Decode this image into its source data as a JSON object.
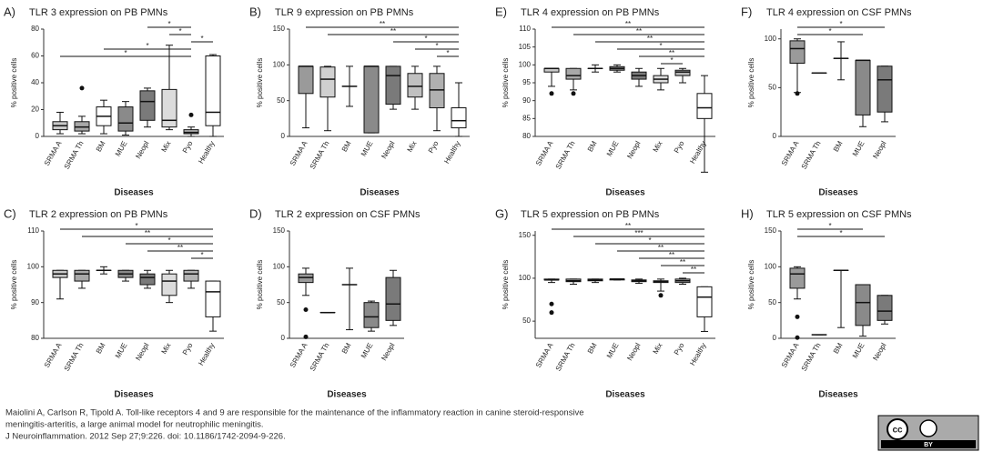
{
  "chart_data": [
    {
      "type": "box",
      "label": "A)",
      "title": "TLR 3 expression on PB PMNs",
      "ylabel": "% positive cells",
      "xlabel": "Diseases",
      "categories": [
        "SRMA A",
        "SRMA Th",
        "BM",
        "MUE",
        "Neopl",
        "Mix",
        "Pyo",
        "Healthy"
      ],
      "boxes": [
        [
          2,
          5,
          8,
          11,
          18
        ],
        [
          2,
          4,
          7,
          11,
          15
        ],
        [
          2,
          8,
          15,
          22,
          27
        ],
        [
          1,
          4,
          10,
          22,
          26
        ],
        [
          7,
          12,
          26,
          34,
          36
        ],
        [
          5,
          7,
          12,
          35,
          68
        ],
        [
          0,
          2,
          3,
          5,
          7
        ],
        [
          0,
          8,
          18,
          60,
          61
        ]
      ],
      "outliers": [
        [],
        [
          36
        ],
        [],
        [],
        [],
        [],
        [
          16
        ],
        []
      ],
      "colors": [
        "#c8c8c8",
        "#a8a8a8",
        "#ffffff",
        "#8a8a8a",
        "#7a7a7a",
        "#dcdcdc",
        "#b4b4b4",
        "#ffffff"
      ],
      "ylim": [
        0,
        80
      ],
      "yticks": [
        0,
        20,
        40,
        60,
        80
      ],
      "annotations": [
        {
          "text": "*",
          "from": "Neopl",
          "to": "Pyo"
        },
        {
          "text": "*",
          "from": "Mix",
          "to": "Pyo"
        },
        {
          "text": "*",
          "from": "Pyo",
          "to": "Healthy"
        },
        {
          "text": "*",
          "from": "BM",
          "to": "Pyo"
        },
        {
          "text": "*",
          "from": "SRMA A",
          "to": "Pyo"
        }
      ]
    },
    {
      "type": "box",
      "label": "B)",
      "title": "TLR 9 expression on PB PMNs",
      "ylabel": "% positive cells",
      "xlabel": "Diseases",
      "categories": [
        "SRMA A",
        "SRMA Th",
        "BM",
        "MUE",
        "Neopl",
        "Mix",
        "Pyo",
        "Healthy"
      ],
      "boxes": [
        [
          12,
          60,
          98,
          98,
          98
        ],
        [
          8,
          55,
          80,
          97,
          98
        ],
        [
          42,
          70,
          70,
          70,
          98
        ],
        [
          5,
          5,
          98,
          98,
          98
        ],
        [
          38,
          45,
          85,
          98,
          98
        ],
        [
          38,
          55,
          70,
          88,
          98
        ],
        [
          8,
          40,
          65,
          88,
          98
        ],
        [
          0,
          12,
          22,
          40,
          75
        ]
      ],
      "outliers": [
        [],
        [],
        [],
        [],
        [],
        [],
        [],
        []
      ],
      "colors": [
        "#9a9a9a",
        "#d0d0d0",
        "#ffffff",
        "#8a8a8a",
        "#7a7a7a",
        "#c0c0c0",
        "#b0b0b0",
        "#ffffff"
      ],
      "ylim": [
        0,
        150
      ],
      "yticks": [
        0,
        50,
        100,
        150
      ],
      "annotations": [
        {
          "text": "**",
          "from": "SRMA A",
          "to": "Healthy"
        },
        {
          "text": "**",
          "from": "SRMA Th",
          "to": "Healthy"
        },
        {
          "text": "*",
          "from": "Neopl",
          "to": "Healthy"
        },
        {
          "text": "*",
          "from": "Mix",
          "to": "Healthy"
        },
        {
          "text": "*",
          "from": "Pyo",
          "to": "Healthy"
        }
      ]
    },
    {
      "type": "box",
      "label": "E)",
      "title": "TLR 4 expression on PB PMNs",
      "ylabel": "% positive cells",
      "xlabel": "Diseases",
      "categories": [
        "SRMA A",
        "SRMA Th",
        "BM",
        "MUE",
        "Neopl",
        "Mix",
        "Pyo",
        "Healthy"
      ],
      "boxes": [
        [
          94,
          98,
          99,
          99,
          99
        ],
        [
          93,
          96,
          97,
          99,
          99
        ],
        [
          98,
          99,
          99,
          99,
          100
        ],
        [
          98,
          98.5,
          99,
          99.5,
          100
        ],
        [
          94,
          96,
          97,
          98,
          99
        ],
        [
          93,
          95,
          96,
          97,
          99
        ],
        [
          95,
          97,
          98,
          98.5,
          99
        ],
        [
          70,
          85,
          88,
          92,
          97
        ]
      ],
      "outliers": [
        [
          92
        ],
        [
          92
        ],
        [],
        [],
        [],
        [],
        [],
        []
      ],
      "colors": [
        "#c8c8c8",
        "#a8a8a8",
        "#ffffff",
        "#8a8a8a",
        "#7a7a7a",
        "#dcdcdc",
        "#b4b4b4",
        "#ffffff"
      ],
      "ylim": [
        80,
        110
      ],
      "yticks": [
        80,
        85,
        90,
        95,
        100,
        105,
        110
      ],
      "annotations": [
        {
          "text": "**",
          "from": "SRMA A",
          "to": "Healthy"
        },
        {
          "text": "**",
          "from": "SRMA Th",
          "to": "Healthy"
        },
        {
          "text": "**",
          "from": "BM",
          "to": "Healthy"
        },
        {
          "text": "*",
          "from": "MUE",
          "to": "Healthy"
        },
        {
          "text": "**",
          "from": "Neopl",
          "to": "Healthy"
        },
        {
          "text": "*",
          "from": "Mix",
          "to": "Pyo"
        }
      ]
    },
    {
      "type": "box",
      "label": "F)",
      "title": "TLR 4 expression on CSF PMNs",
      "ylabel": "% positive cells",
      "xlabel": "Diseases",
      "categories": [
        "SRMA A",
        "SRMA Th",
        "BM",
        "MUE",
        "Neopl"
      ],
      "boxes": [
        [
          45,
          75,
          90,
          98,
          100
        ],
        [
          65,
          65,
          65,
          65,
          65
        ],
        [
          58,
          80,
          80,
          80,
          97
        ],
        [
          10,
          22,
          78,
          78,
          78
        ],
        [
          15,
          25,
          58,
          72,
          72
        ]
      ],
      "outliers": [
        [
          44
        ],
        [],
        [],
        [],
        []
      ],
      "colors": [
        "#9a9a9a",
        "#ffffff",
        "#ffffff",
        "#8a8a8a",
        "#7a7a7a"
      ],
      "ylim": [
        0,
        110
      ],
      "yticks": [
        0,
        50,
        100
      ],
      "annotations": [
        {
          "text": "*",
          "from": "SRMA A",
          "to": "Neopl"
        },
        {
          "text": "*",
          "from": "SRMA A",
          "to": "MUE"
        }
      ]
    },
    {
      "type": "box",
      "label": "C)",
      "title": "TLR 2 expression  on PB PMNs",
      "ylabel": "% positive cells",
      "xlabel": "Diseases",
      "categories": [
        "SRMA A",
        "SRMA Th",
        "BM",
        "MUE",
        "Neopl",
        "Mix",
        "Pyo",
        "Healthy"
      ],
      "boxes": [
        [
          91,
          97,
          98,
          99,
          99
        ],
        [
          94,
          96,
          98,
          99,
          99
        ],
        [
          98,
          99,
          99,
          99,
          100
        ],
        [
          96,
          97,
          98,
          99,
          99
        ],
        [
          94,
          95,
          97,
          98,
          99
        ],
        [
          90,
          92,
          96,
          98,
          99
        ],
        [
          94,
          96,
          98,
          99,
          99
        ],
        [
          82,
          86,
          93,
          96,
          96
        ]
      ],
      "outliers": [
        [],
        [],
        [],
        [],
        [],
        [],
        [],
        []
      ],
      "colors": [
        "#c8c8c8",
        "#a8a8a8",
        "#ffffff",
        "#8a8a8a",
        "#7a7a7a",
        "#dcdcdc",
        "#b4b4b4",
        "#ffffff"
      ],
      "ylim": [
        80,
        110
      ],
      "yticks": [
        80,
        90,
        100,
        110
      ],
      "annotations": [
        {
          "text": "*",
          "from": "SRMA A",
          "to": "Healthy"
        },
        {
          "text": "**",
          "from": "SRMA Th",
          "to": "Healthy"
        },
        {
          "text": "*",
          "from": "MUE",
          "to": "Healthy"
        },
        {
          "text": "**",
          "from": "Neopl",
          "to": "Healthy"
        },
        {
          "text": "*",
          "from": "Pyo",
          "to": "Healthy"
        }
      ]
    },
    {
      "type": "box",
      "label": "D)",
      "title": "TLR 2 expression on CSF PMNs",
      "ylabel": "% positive cells",
      "xlabel": "Diseases",
      "categories": [
        "SRMA A",
        "SRMA Th",
        "BM",
        "MUE",
        "Neopl"
      ],
      "boxes": [
        [
          60,
          78,
          85,
          90,
          98
        ],
        [
          36,
          36,
          36,
          36,
          36
        ],
        [
          12,
          75,
          75,
          75,
          98
        ],
        [
          10,
          15,
          30,
          50,
          52
        ],
        [
          18,
          25,
          48,
          85,
          95
        ]
      ],
      "outliers": [
        [
          40,
          2
        ],
        [],
        [],
        [],
        []
      ],
      "colors": [
        "#9a9a9a",
        "#ffffff",
        "#ffffff",
        "#8a8a8a",
        "#7a7a7a"
      ],
      "ylim": [
        0,
        150
      ],
      "yticks": [
        0,
        50,
        100,
        150
      ],
      "annotations": []
    },
    {
      "type": "box",
      "label": "G)",
      "title": "TLR 5 expression on PB PMNs",
      "ylabel": "% positive cells",
      "xlabel": "Diseases",
      "categories": [
        "SRMA A",
        "SRMA Th",
        "BM",
        "MUE",
        "Neopl",
        "Mix",
        "Pyo",
        "Healthy"
      ],
      "boxes": [
        [
          95,
          98,
          98,
          99,
          99
        ],
        [
          93,
          96,
          97,
          99,
          99
        ],
        [
          95,
          97,
          98,
          99,
          99
        ],
        [
          98,
          98,
          99,
          99,
          99
        ],
        [
          94,
          96,
          97,
          98,
          99
        ],
        [
          85,
          95,
          96,
          97,
          99
        ],
        [
          93,
          95,
          97,
          99,
          100
        ],
        [
          38,
          55,
          78,
          90,
          90
        ]
      ],
      "outliers": [
        [
          70,
          60
        ],
        [],
        [],
        [],
        [],
        [
          80
        ],
        [],
        []
      ],
      "colors": [
        "#c8c8c8",
        "#a8a8a8",
        "#ffffff",
        "#8a8a8a",
        "#7a7a7a",
        "#dcdcdc",
        "#b4b4b4",
        "#ffffff"
      ],
      "ylim": [
        30,
        155
      ],
      "yticks": [
        50,
        100,
        150
      ],
      "annotations": [
        {
          "text": "**",
          "from": "SRMA A",
          "to": "Healthy"
        },
        {
          "text": "***",
          "from": "SRMA Th",
          "to": "Healthy"
        },
        {
          "text": "*",
          "from": "BM",
          "to": "Healthy"
        },
        {
          "text": "**",
          "from": "MUE",
          "to": "Healthy"
        },
        {
          "text": "**",
          "from": "Neopl",
          "to": "Healthy"
        },
        {
          "text": "**",
          "from": "Mix",
          "to": "Healthy"
        },
        {
          "text": "**",
          "from": "Pyo",
          "to": "Healthy"
        }
      ]
    },
    {
      "type": "box",
      "label": "H)",
      "title": "TLR 5 expression on CSF PMNs",
      "ylabel": "% positive cells",
      "xlabel": "Diseases",
      "categories": [
        "SRMA A",
        "SRMA Th",
        "BM",
        "MUE",
        "Neopl"
      ],
      "boxes": [
        [
          55,
          70,
          90,
          98,
          100
        ],
        [
          5,
          5,
          5,
          5,
          5
        ],
        [
          15,
          95,
          95,
          95,
          95
        ],
        [
          3,
          18,
          50,
          75,
          75
        ],
        [
          20,
          25,
          38,
          60,
          60
        ]
      ],
      "outliers": [
        [
          30,
          1
        ],
        [],
        [],
        [],
        []
      ],
      "colors": [
        "#9a9a9a",
        "#ffffff",
        "#ffffff",
        "#8a8a8a",
        "#7a7a7a"
      ],
      "ylim": [
        0,
        150
      ],
      "yticks": [
        0,
        50,
        100,
        150
      ],
      "annotations": [
        {
          "text": "*",
          "from": "SRMA A",
          "to": "MUE"
        },
        {
          "text": "*",
          "from": "SRMA A",
          "to": "Neopl"
        }
      ]
    }
  ],
  "caption": [
    "Maiolini A, Carlson R, Tipold A. Toll-like receptors 4 and 9 are responsible for the maintenance of the inflammatory reaction in canine steroid-responsive",
    "meningitis-arteritis, a large animal model for neutrophilic meningitis.",
    "J Neuroinflammation. 2012 Sep 27;9:226. doi: 10.1186/1742-2094-9-226."
  ],
  "license": {
    "icon": "cc",
    "tag": "BY"
  }
}
